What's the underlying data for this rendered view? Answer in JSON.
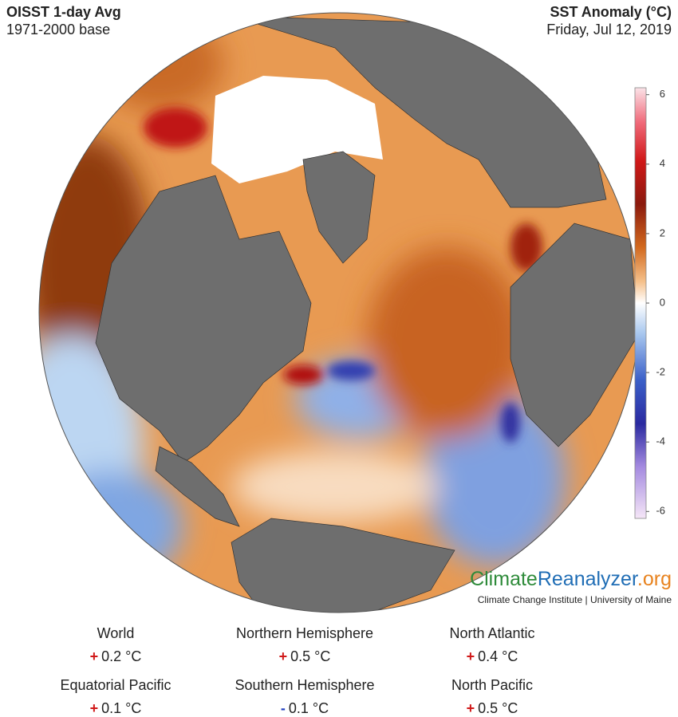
{
  "header": {
    "title": "OISST 1-day Avg",
    "subtitle": "1971-2000 base",
    "right_title": "SST Anomaly (°C)",
    "date": "Friday, Jul 12, 2019"
  },
  "colorbar": {
    "lim": [
      -6.2,
      6.2
    ],
    "ticks": [
      6,
      4,
      2,
      0,
      -2,
      -4,
      -6
    ]
  },
  "logo": {
    "parts": [
      "Climate",
      "Reanalyzer",
      ".org"
    ],
    "credit": "Climate Change Institute | University of Maine"
  },
  "stats": [
    {
      "label": "World",
      "sign": "+",
      "value": "0.2 °C"
    },
    {
      "label": "Northern Hemisphere",
      "sign": "+",
      "value": "0.5 °C"
    },
    {
      "label": "North Atlantic",
      "sign": "+",
      "value": "0.4 °C"
    },
    {
      "label": "Equatorial Pacific",
      "sign": "+",
      "value": "0.1 °C"
    },
    {
      "label": "Southern Hemisphere",
      "sign": "-",
      "value": "0.1 °C"
    },
    {
      "label": "North Pacific",
      "sign": "+",
      "value": "0.5 °C"
    }
  ]
}
